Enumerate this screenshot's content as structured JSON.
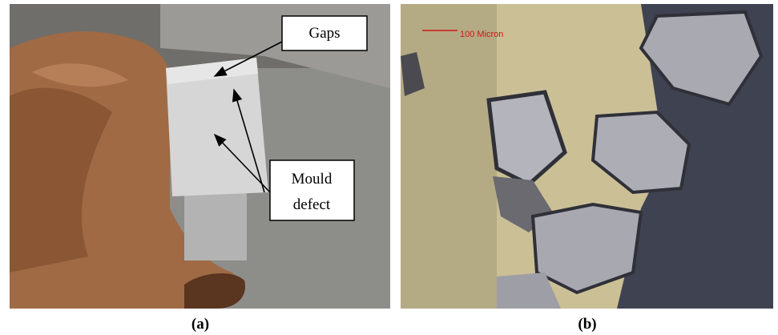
{
  "panels": [
    {
      "label": "(a)",
      "annotations": {
        "gaps": "Gaps",
        "mould_defect": [
          "Mould",
          "defect"
        ]
      }
    },
    {
      "label": "(b)",
      "scale_bar": "100 Micron"
    }
  ]
}
